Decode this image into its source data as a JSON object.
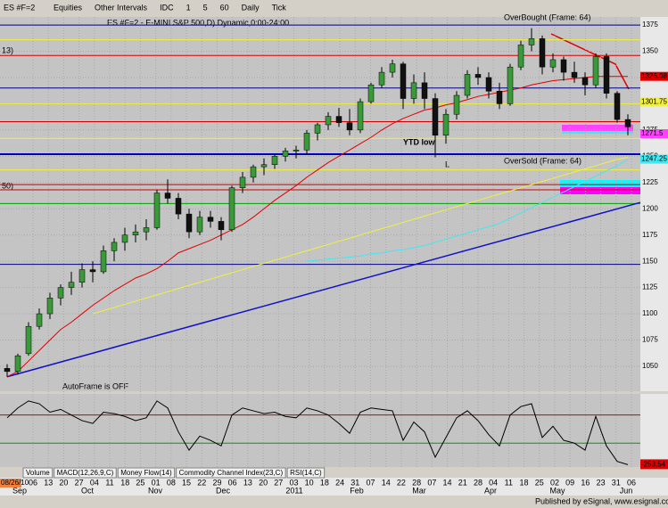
{
  "toolbar": {
    "symbol": "ES #F=2",
    "items": [
      "Equities",
      "Other Intervals",
      "IDC",
      "1",
      "5",
      "60",
      "Daily",
      "Tick"
    ]
  },
  "chart_data": {
    "type": "candlestick",
    "title": "ES #F=2 - E-MINI S&P 500,D) Dynamic,0:00-24:00",
    "ylim": [
      1026.2,
      1382.7
    ],
    "yticks": [
      1050,
      1075,
      1100,
      1125,
      1150,
      1175,
      1200,
      1225,
      1250,
      1275,
      1300,
      1325,
      1350,
      1375
    ],
    "ohlc": [
      [
        1048,
        1052,
        1040,
        1045
      ],
      [
        1045,
        1062,
        1042,
        1060
      ],
      [
        1062,
        1092,
        1060,
        1088
      ],
      [
        1088,
        1105,
        1085,
        1100
      ],
      [
        1100,
        1120,
        1095,
        1115
      ],
      [
        1115,
        1128,
        1108,
        1125
      ],
      [
        1125,
        1140,
        1118,
        1130
      ],
      [
        1130,
        1148,
        1125,
        1142
      ],
      [
        1142,
        1150,
        1130,
        1140
      ],
      [
        1140,
        1165,
        1138,
        1160
      ],
      [
        1160,
        1172,
        1150,
        1168
      ],
      [
        1168,
        1182,
        1160,
        1175
      ],
      [
        1175,
        1185,
        1168,
        1178
      ],
      [
        1178,
        1190,
        1170,
        1182
      ],
      [
        1182,
        1218,
        1180,
        1215
      ],
      [
        1215,
        1228,
        1205,
        1210
      ],
      [
        1210,
        1215,
        1190,
        1195
      ],
      [
        1195,
        1200,
        1172,
        1178
      ],
      [
        1178,
        1198,
        1175,
        1192
      ],
      [
        1192,
        1198,
        1182,
        1188
      ],
      [
        1188,
        1192,
        1170,
        1180
      ],
      [
        1180,
        1222,
        1178,
        1220
      ],
      [
        1220,
        1235,
        1215,
        1230
      ],
      [
        1230,
        1242,
        1225,
        1240
      ],
      [
        1240,
        1248,
        1232,
        1242
      ],
      [
        1242,
        1252,
        1238,
        1250
      ],
      [
        1250,
        1258,
        1245,
        1255
      ],
      [
        1255,
        1260,
        1248,
        1256
      ],
      [
        1256,
        1275,
        1252,
        1272
      ],
      [
        1272,
        1282,
        1265,
        1280
      ],
      [
        1280,
        1292,
        1275,
        1288
      ],
      [
        1288,
        1296,
        1278,
        1282
      ],
      [
        1282,
        1295,
        1270,
        1275
      ],
      [
        1275,
        1305,
        1272,
        1302
      ],
      [
        1302,
        1320,
        1300,
        1318
      ],
      [
        1318,
        1335,
        1315,
        1330
      ],
      [
        1330,
        1342,
        1325,
        1338
      ],
      [
        1338,
        1340,
        1295,
        1305
      ],
      [
        1305,
        1328,
        1300,
        1320
      ],
      [
        1320,
        1330,
        1295,
        1305
      ],
      [
        1305,
        1310,
        1249,
        1270
      ],
      [
        1270,
        1295,
        1262,
        1290
      ],
      [
        1290,
        1312,
        1285,
        1308
      ],
      [
        1308,
        1332,
        1305,
        1328
      ],
      [
        1328,
        1335,
        1318,
        1325
      ],
      [
        1325,
        1330,
        1305,
        1312
      ],
      [
        1312,
        1320,
        1295,
        1300
      ],
      [
        1300,
        1338,
        1298,
        1335
      ],
      [
        1335,
        1360,
        1332,
        1356
      ],
      [
        1356,
        1372,
        1350,
        1362
      ],
      [
        1362,
        1365,
        1328,
        1335
      ],
      [
        1335,
        1348,
        1330,
        1342
      ],
      [
        1342,
        1345,
        1322,
        1330
      ],
      [
        1330,
        1340,
        1320,
        1325
      ],
      [
        1325,
        1330,
        1308,
        1318
      ],
      [
        1318,
        1348,
        1315,
        1345
      ],
      [
        1345,
        1348,
        1305,
        1310
      ],
      [
        1310,
        1312,
        1282,
        1285
      ],
      [
        1285,
        1290,
        1270,
        1278
      ]
    ],
    "overlays": [
      {
        "color": "#e00000",
        "values": [
          1040,
          1045,
          1055,
          1065,
          1075,
          1085,
          1092,
          1100,
          1108,
          1115,
          1122,
          1128,
          1134,
          1138,
          1143,
          1150,
          1158,
          1162,
          1166,
          1170,
          1175,
          1180,
          1185,
          1192,
          1200,
          1208,
          1215,
          1222,
          1230,
          1237,
          1244,
          1250,
          1256,
          1262,
          1268,
          1275,
          1281,
          1286,
          1290,
          1294,
          1296,
          1299,
          1301,
          1304,
          1307,
          1309,
          1311,
          1313,
          1315,
          1318,
          1320,
          1322,
          1323,
          1324,
          1325,
          1326,
          1326,
          1326,
          1326
        ]
      },
      {
        "color": "#f0f040",
        "values": [
          null,
          null,
          null,
          null,
          null,
          null,
          null,
          null,
          1100,
          1103,
          1106,
          1109,
          1112,
          1115,
          1118,
          1121,
          1124,
          1127,
          1130,
          1133,
          1136,
          1139,
          1142,
          1145,
          1148,
          1151,
          1154,
          1157,
          1160,
          1163,
          1166,
          1169,
          1172,
          1175,
          1178,
          1181,
          1184,
          1187,
          1190,
          1193,
          1196,
          1199,
          1202,
          1205,
          1208,
          1211,
          1214,
          1217,
          1220,
          1223,
          1226,
          1229,
          1232,
          1235,
          1238,
          1241,
          1244,
          1247,
          1249
        ]
      },
      {
        "color": "#40e8f0",
        "values": [
          null,
          null,
          null,
          null,
          null,
          null,
          null,
          null,
          null,
          null,
          null,
          null,
          null,
          null,
          null,
          null,
          null,
          null,
          null,
          null,
          null,
          null,
          null,
          null,
          null,
          null,
          null,
          null,
          1150,
          1151,
          1152,
          1153,
          1154,
          1155,
          1157,
          1158,
          1160,
          1161,
          1163,
          1165,
          1168,
          1171,
          1174,
          1177,
          1180,
          1183,
          1186,
          1191,
          1196,
          1201,
          1206,
          1211,
          1216,
          1221,
          1226,
          1231,
          1236,
          1241,
          1247
        ]
      }
    ],
    "trendline": {
      "color": "#1010c8",
      "values": [
        1040,
        1206
      ]
    },
    "levels": [
      {
        "value": 1375,
        "color": "#000080"
      },
      {
        "value": 1361,
        "color": "#f0f040"
      },
      {
        "value": 1346,
        "color": "#d00000"
      },
      {
        "value": 1315,
        "color": "#000080"
      },
      {
        "value": 1300,
        "color": "#f0f040"
      },
      {
        "value": 1283,
        "color": "#d00000"
      },
      {
        "value": 1267,
        "color": "#f0f040"
      },
      {
        "value": 1252,
        "color": "#0000c0"
      },
      {
        "value": 1237,
        "color": "#f0f040"
      },
      {
        "value": 1223,
        "color": "#d00000"
      },
      {
        "value": 1218,
        "color": "#d00000"
      },
      {
        "value": 1205,
        "color": "#00a000"
      },
      {
        "value": 1147,
        "color": "#000080"
      }
    ],
    "price_tags": [
      {
        "value": 1326.08,
        "color": "#e00000"
      },
      {
        "value": 1301.75,
        "color": "#f0f040"
      },
      {
        "value": 1271.5,
        "color": "#ff40ff"
      },
      {
        "value": 1247.25,
        "color": "#40e8f0"
      }
    ],
    "annotations": [
      "OverBought (Frame: 64)",
      "OverSold (Frame: 64)",
      "YTD low",
      "L",
      "AutoFrame is OFF",
      "13)",
      "50)"
    ],
    "start_date": "08/26/10",
    "x_ticks": [
      "06",
      "13",
      "20",
      "27",
      "04",
      "11",
      "18",
      "25",
      "01",
      "08",
      "15",
      "22",
      "29",
      "06",
      "13",
      "20",
      "27",
      "03",
      "10",
      "18",
      "24",
      "31",
      "07",
      "14",
      "22",
      "28",
      "07",
      "14",
      "21",
      "28",
      "04",
      "11",
      "18",
      "25",
      "02",
      "09",
      "16",
      "23",
      "31",
      "06"
    ],
    "months": [
      "Sep",
      "Oct",
      "Nov",
      "Dec",
      "2011",
      "Feb",
      "Mar",
      "Apr",
      "May",
      "Jun"
    ],
    "indicator": {
      "type": "line",
      "color": "#000000",
      "ylim": [
        -270,
        250
      ],
      "levels": [
        {
          "value": 100,
          "color": "#d00000"
        },
        {
          "value": -100,
          "color": "#00a000"
        }
      ],
      "values": [
        80,
        150,
        200,
        180,
        120,
        140,
        100,
        60,
        40,
        120,
        110,
        90,
        60,
        80,
        200,
        150,
        -20,
        -150,
        -50,
        -80,
        -120,
        100,
        150,
        130,
        110,
        120,
        90,
        80,
        150,
        130,
        100,
        40,
        -30,
        120,
        150,
        140,
        130,
        -80,
        50,
        -20,
        -200,
        -60,
        80,
        130,
        60,
        -40,
        -120,
        100,
        160,
        180,
        -60,
        20,
        -80,
        -100,
        -150,
        90,
        -120,
        -230,
        -253.54
      ]
    },
    "tabs": [
      "Volume",
      "MACD(12,26,9,C)",
      "Money Flow(14)",
      "Commodity Channel Index(23,C)",
      "RSI(14,C)"
    ]
  },
  "footer": "Published by eSignal, www.esignal.com"
}
